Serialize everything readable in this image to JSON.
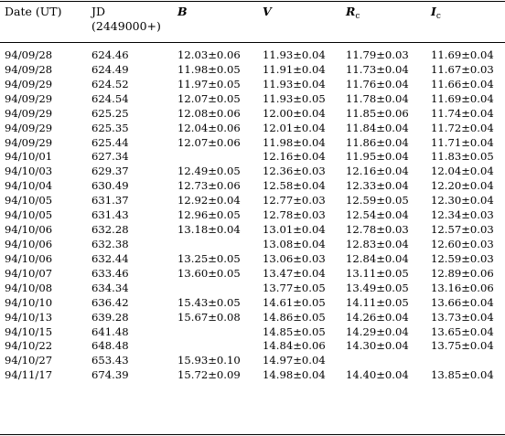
{
  "table": {
    "headers": {
      "date": "Date (UT)",
      "jd_line1": "JD",
      "jd_line2": "(2449000+)",
      "b": "B",
      "v": "V",
      "rc_main": "R",
      "rc_sub": "c",
      "ic_main": "I",
      "ic_sub": "c"
    },
    "rows": [
      [
        "94/09/28",
        "624.46",
        "12.03±0.06",
        "11.93±0.04",
        "11.79±0.03",
        "11.69±0.04"
      ],
      [
        "94/09/28",
        "624.49",
        "11.98±0.05",
        "11.91±0.04",
        "11.73±0.04",
        "11.67±0.03"
      ],
      [
        "94/09/29",
        "624.52",
        "11.97±0.05",
        "11.93±0.04",
        "11.76±0.04",
        "11.66±0.04"
      ],
      [
        "94/09/29",
        "624.54",
        "12.07±0.05",
        "11.93±0.05",
        "11.78±0.04",
        "11.69±0.04"
      ],
      [
        "94/09/29",
        "625.25",
        "12.08±0.06",
        "12.00±0.04",
        "11.85±0.06",
        "11.74±0.04"
      ],
      [
        "94/09/29",
        "625.35",
        "12.04±0.06",
        "12.01±0.04",
        "11.84±0.04",
        "11.72±0.04"
      ],
      [
        "94/09/29",
        "625.44",
        "12.07±0.06",
        "11.98±0.04",
        "11.86±0.04",
        "11.71±0.04"
      ],
      [
        "94/10/01",
        "627.34",
        "",
        "12.16±0.04",
        "11.95±0.04",
        "11.83±0.05"
      ],
      [
        "94/10/03",
        "629.37",
        "12.49±0.05",
        "12.36±0.03",
        "12.16±0.04",
        "12.04±0.04"
      ],
      [
        "94/10/04",
        "630.49",
        "12.73±0.06",
        "12.58±0.04",
        "12.33±0.04",
        "12.20±0.04"
      ],
      [
        "94/10/05",
        "631.37",
        "12.92±0.04",
        "12.77±0.03",
        "12.59±0.05",
        "12.30±0.04"
      ],
      [
        "94/10/05",
        "631.43",
        "12.96±0.05",
        "12.78±0.03",
        "12.54±0.04",
        "12.34±0.03"
      ],
      [
        "94/10/06",
        "632.28",
        "13.18±0.04",
        "13.01±0.04",
        "12.78±0.03",
        "12.57±0.03"
      ],
      [
        "94/10/06",
        "632.38",
        "",
        "13.08±0.04",
        "12.83±0.04",
        "12.60±0.03"
      ],
      [
        "94/10/06",
        "632.44",
        "13.25±0.05",
        "13.06±0.03",
        "12.84±0.04",
        "12.59±0.03"
      ],
      [
        "94/10/07",
        "633.46",
        "13.60±0.05",
        "13.47±0.04",
        "13.11±0.05",
        "12.89±0.06"
      ],
      [
        "94/10/08",
        "634.34",
        "",
        "13.77±0.05",
        "13.49±0.05",
        "13.16±0.06"
      ],
      [
        "94/10/10",
        "636.42",
        "15.43±0.05",
        "14.61±0.05",
        "14.11±0.05",
        "13.66±0.04"
      ],
      [
        "94/10/13",
        "639.28",
        "15.67±0.08",
        "14.86±0.05",
        "14.26±0.04",
        "13.73±0.04"
      ],
      [
        "94/10/15",
        "641.48",
        "",
        "14.85±0.05",
        "14.29±0.04",
        "13.65±0.04"
      ],
      [
        "94/10/22",
        "648.48",
        "",
        "14.84±0.06",
        "14.30±0.04",
        "13.75±0.04"
      ],
      [
        "94/10/27",
        "653.43",
        "15.93±0.10",
        "14.97±0.04",
        "",
        ""
      ],
      [
        "94/11/17",
        "674.39",
        "15.72±0.09",
        "14.98±0.04",
        "14.40±0.04",
        "13.85±0.04"
      ]
    ]
  }
}
